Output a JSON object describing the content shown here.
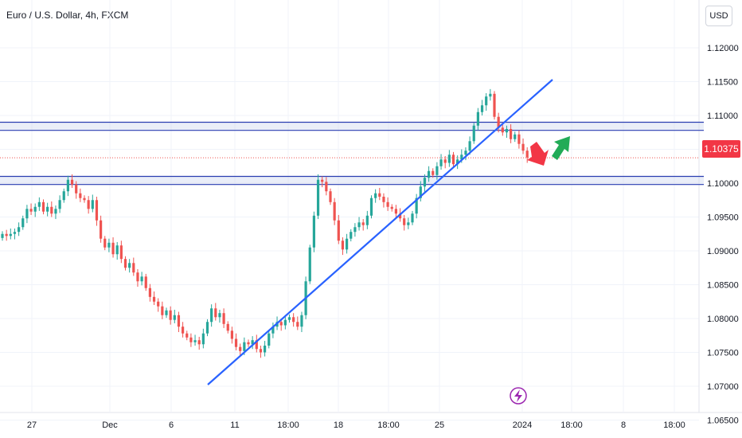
{
  "header": {
    "title": "Euro / U.S. Dollar, 4h, FXCM",
    "currency_button": "USD"
  },
  "price_badge": "1.10375",
  "colors": {
    "up": "#26a69a",
    "down": "#ef5350",
    "line": "#2962ff",
    "zone": "#2a3eb1"
  },
  "chart_data": {
    "type": "candlestick",
    "symbol": "Euro / U.S. Dollar",
    "timeframe": "4h",
    "source": "FXCM",
    "ylim": [
      1.0625,
      1.1225
    ],
    "y_ticks": [
      "1.12000",
      "1.11500",
      "1.11000",
      "1.10500",
      "1.10000",
      "1.09500",
      "1.09000",
      "1.08500",
      "1.08000",
      "1.07500",
      "1.07000",
      "1.06500"
    ],
    "x_ticks": [
      "27",
      "Dec",
      "6",
      "11",
      "18:00",
      "18",
      "18:00",
      "25",
      "2024",
      "18:00",
      "8",
      "18:00"
    ],
    "last_price": 1.10375,
    "close_series": [
      1.0925,
      1.0922,
      1.0925,
      1.0928,
      1.0935,
      1.0948,
      1.0962,
      1.0958,
      1.0965,
      1.0972,
      1.0958,
      1.0965,
      1.0955,
      1.0962,
      1.0975,
      1.0988,
      1.1005,
      1.0998,
      1.0985,
      1.0978,
      1.0975,
      1.0962,
      1.0975,
      1.0945,
      1.0918,
      1.0905,
      1.0912,
      1.0895,
      1.0908,
      1.0888,
      1.0875,
      1.0882,
      1.0868,
      1.0855,
      1.0862,
      1.0845,
      1.0832,
      1.0825,
      1.0818,
      1.0805,
      1.0812,
      1.0798,
      1.0805,
      1.0788,
      1.0778,
      1.0772,
      1.0765,
      1.0768,
      1.0762,
      1.0778,
      1.0795,
      1.0815,
      1.0802,
      1.0808,
      1.0792,
      1.0782,
      1.077,
      1.0758,
      1.0752,
      1.0765,
      1.0762,
      1.0768,
      1.0755,
      1.075,
      1.076,
      1.0778,
      1.0788,
      1.0795,
      1.079,
      1.0798,
      1.0802,
      1.0795,
      1.0788,
      1.0805,
      1.0855,
      1.0905,
      1.0952,
      1.1005,
      1.1002,
      1.0988,
      1.0972,
      1.0945,
      1.0915,
      1.0902,
      1.0918,
      1.0928,
      1.0935,
      1.0942,
      1.0938,
      1.0952,
      1.0978,
      1.0985,
      1.098,
      1.0972,
      1.0965,
      1.0962,
      1.0955,
      1.0948,
      1.0938,
      1.0942,
      1.0955,
      1.0978,
      1.0995,
      1.1008,
      1.1018,
      1.1012,
      1.1025,
      1.1035,
      1.103,
      1.1042,
      1.1028,
      1.1035,
      1.1042,
      1.1048,
      1.1062,
      1.1085,
      1.1105,
      1.1115,
      1.1128,
      1.1132,
      1.1098,
      1.1082,
      1.1075,
      1.108,
      1.1065,
      1.1072,
      1.1058,
      1.1048,
      1.1038
    ],
    "trendlines": [
      {
        "from": [
          "11",
          1.0655
        ],
        "to": [
          "2024 18:00",
          1.1145
        ]
      }
    ],
    "horizontal_zones": [
      {
        "top": 1.109,
        "bottom": 1.1078
      },
      {
        "top": 1.101,
        "bottom": 1.0998
      }
    ],
    "annotations": [
      "red-down-arrow",
      "green-up-arrow",
      "lightning-icon"
    ]
  }
}
